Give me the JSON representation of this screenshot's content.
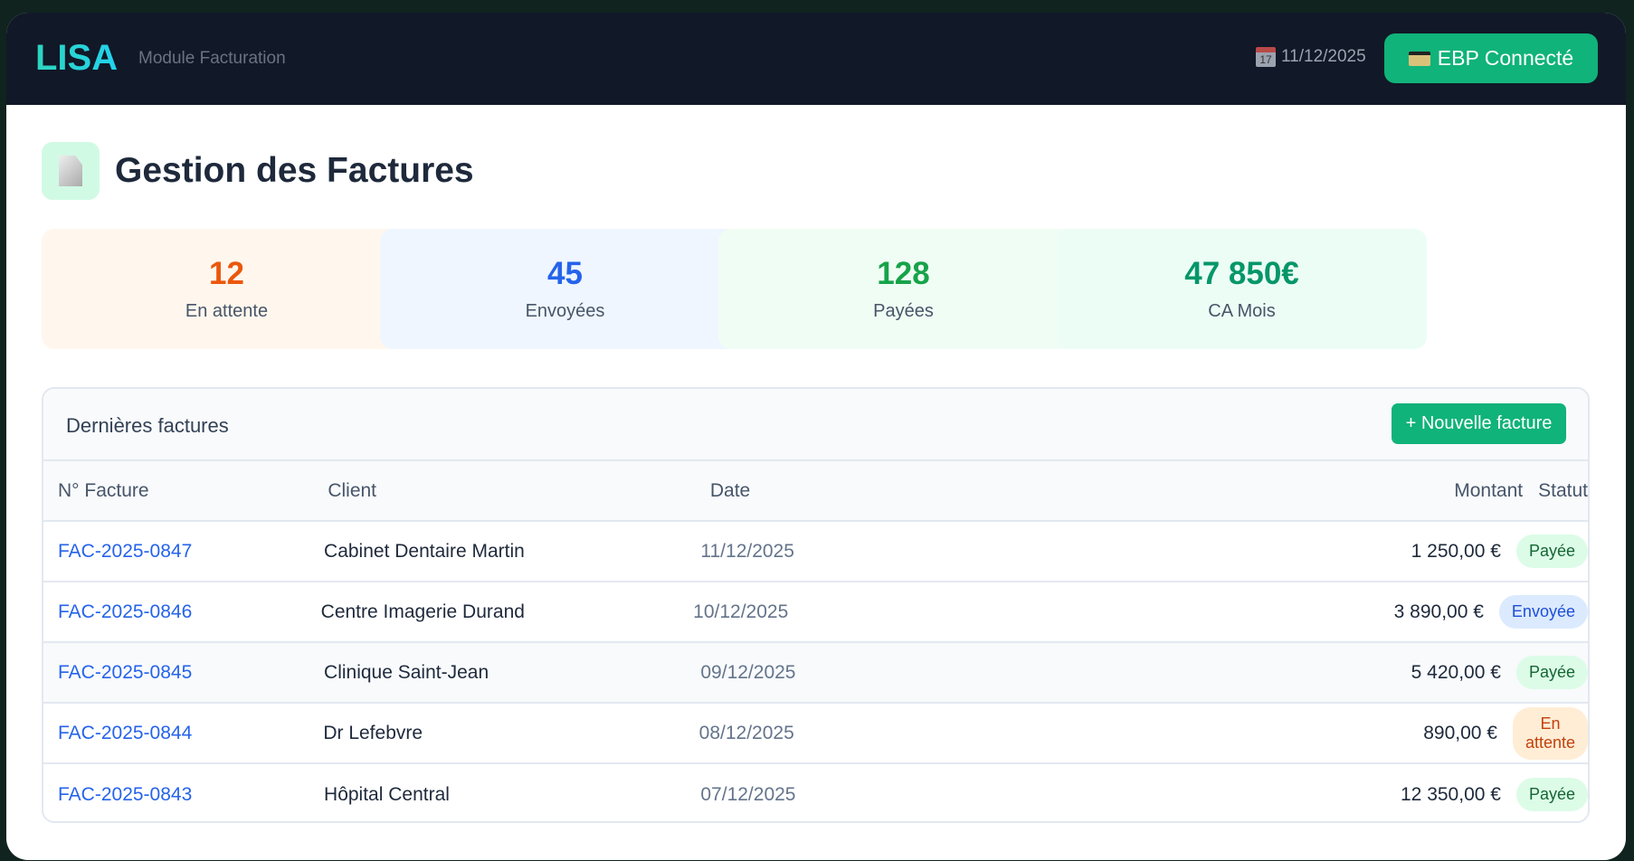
{
  "header": {
    "logo": "LISA",
    "subtitle": "Module Facturation",
    "date": "11/12/2025",
    "calendar_icon_text": "17",
    "ebp_label": "EBP Connecté"
  },
  "page": {
    "title": "Gestion des Factures"
  },
  "stats": [
    {
      "value": "12",
      "label": "En attente",
      "color": "#ea580c",
      "bg": "#fff7ed"
    },
    {
      "value": "45",
      "label": "Envoyées",
      "color": "#2563eb",
      "bg": "#eff6ff"
    },
    {
      "value": "128",
      "label": "Payées",
      "color": "#16a34a",
      "bg": "#f0fdf4"
    },
    {
      "value": "47 850€",
      "label": "CA Mois",
      "color": "#059669",
      "bg": "#ecfdf5"
    }
  ],
  "table": {
    "title": "Dernières factures",
    "new_button": "+ Nouvelle facture",
    "columns": [
      "N° Facture",
      "Client",
      "Date",
      "Montant",
      "Statut"
    ],
    "rows": [
      {
        "id": "FAC-2025-0847",
        "client": "Cabinet Dentaire Martin",
        "date": "11/12/2025",
        "amount": "1 250,00 €",
        "status": "Payée",
        "status_type": "paid"
      },
      {
        "id": "FAC-2025-0846",
        "client": "Centre Imagerie Durand",
        "date": "10/12/2025",
        "amount": "3 890,00 €",
        "status": "Envoyée",
        "status_type": "sent"
      },
      {
        "id": "FAC-2025-0845",
        "client": "Clinique Saint-Jean",
        "date": "09/12/2025",
        "amount": "5 420,00 €",
        "status": "Payée",
        "status_type": "paid"
      },
      {
        "id": "FAC-2025-0844",
        "client": "Dr Lefebvre",
        "date": "08/12/2025",
        "amount": "890,00 €",
        "status": "En attente",
        "status_type": "wait"
      },
      {
        "id": "FAC-2025-0843",
        "client": "Hôpital Central",
        "date": "07/12/2025",
        "amount": "12 350,00 €",
        "status": "Payée",
        "status_type": "paid"
      }
    ]
  }
}
